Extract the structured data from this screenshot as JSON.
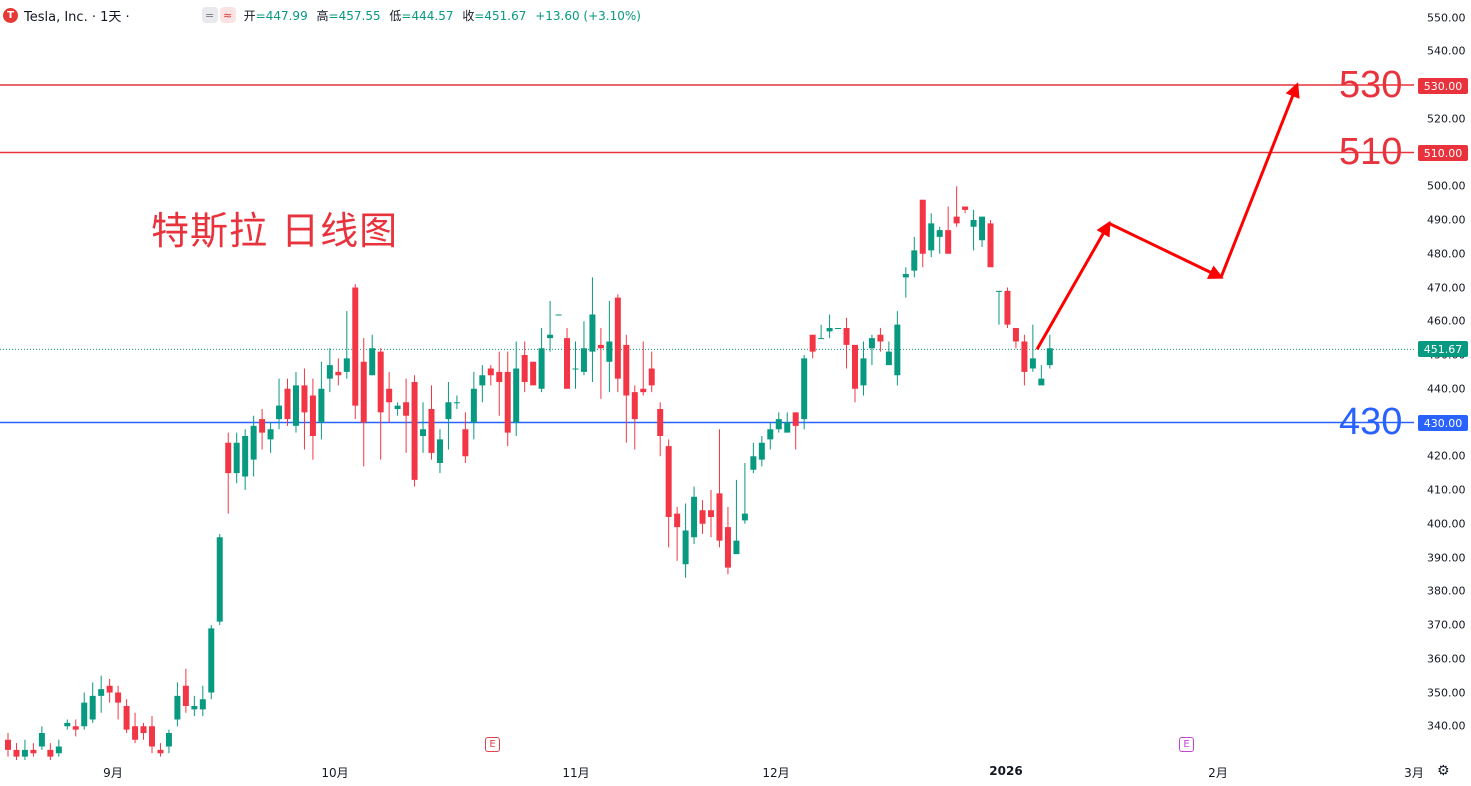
{
  "header": {
    "logo_letter": "T",
    "symbol": "Tesla, Inc. · 1天 ·",
    "pill_1": "=",
    "pill_2": "≈",
    "open_label": "开",
    "open_value": "=447.99",
    "high_label": "高",
    "high_value": "=457.55",
    "low_label": "低",
    "low_value": "=444.57",
    "close_label": "收",
    "close_value": "=451.67",
    "change_value": "+13.60 (+3.10%)"
  },
  "annotation": "特斯拉 日线图",
  "levels": {
    "l530": "530",
    "l510": "510",
    "l430": "430"
  },
  "badges": {
    "b530": "530.00",
    "b510": "510.00",
    "b430": "430.00",
    "last": "451.67"
  },
  "x_axis_labels": {
    "sep": "9月",
    "oct": "10月",
    "nov": "11月",
    "dec": "12月",
    "y2026": "2026",
    "feb": "2月",
    "mar": "3月"
  },
  "events": {
    "e1": "E",
    "e2": "E"
  },
  "settings_icon": "gear-icon",
  "colors": {
    "up": "#089981",
    "down": "#f23645",
    "level_red": "#e8333d",
    "level_blue": "#2962ff",
    "arrow": "#ff0000"
  },
  "chart_data": {
    "type": "candlestick",
    "title": "特斯拉 日线图",
    "symbol": "Tesla, Inc.",
    "interval": "1天",
    "ylim": [
      330,
      555
    ],
    "y_ticks": [
      340,
      350,
      360,
      370,
      380,
      390,
      400,
      410,
      420,
      430,
      440,
      450,
      460,
      470,
      480,
      490,
      500,
      510,
      520,
      530,
      540,
      550
    ],
    "x_labels": [
      "9月",
      "10月",
      "11月",
      "12月",
      "2026",
      "2月",
      "3月"
    ],
    "last_price": 451.67,
    "horizontal_levels": [
      {
        "value": 530,
        "color": "#e8333d"
      },
      {
        "value": 510,
        "color": "#e8333d"
      },
      {
        "value": 430,
        "color": "#2962ff"
      }
    ],
    "candles": [
      [
        336,
        333,
        338,
        331
      ],
      [
        333,
        331,
        335,
        330
      ],
      [
        331,
        333,
        336,
        330
      ],
      [
        333,
        332,
        335,
        331
      ],
      [
        334,
        338,
        340,
        333
      ],
      [
        333,
        331,
        335,
        330
      ],
      [
        332,
        334,
        336,
        331
      ],
      [
        340,
        341,
        342,
        339
      ],
      [
        340,
        339,
        342,
        337
      ],
      [
        340,
        347,
        350,
        339
      ],
      [
        342,
        349,
        353,
        341
      ],
      [
        349,
        351,
        355,
        344
      ],
      [
        352,
        350,
        354,
        347
      ],
      [
        350,
        347,
        352,
        342
      ],
      [
        346,
        339,
        348,
        338
      ],
      [
        340,
        336,
        344,
        335
      ],
      [
        340,
        338,
        341,
        336
      ],
      [
        340,
        334,
        343,
        332
      ],
      [
        333,
        332,
        335,
        331
      ],
      [
        334,
        338,
        339,
        332
      ],
      [
        342,
        349,
        353,
        340
      ],
      [
        352,
        346,
        357,
        344
      ],
      [
        345,
        346,
        349,
        343
      ],
      [
        345,
        348,
        352,
        343
      ],
      [
        350,
        369,
        370,
        348
      ],
      [
        371,
        396,
        397,
        370
      ],
      [
        424,
        415,
        427,
        403
      ],
      [
        415,
        424,
        427,
        412
      ],
      [
        414,
        426,
        428,
        410
      ],
      [
        419,
        429,
        432,
        414
      ],
      [
        431,
        427,
        434,
        422
      ],
      [
        425,
        428,
        430,
        421
      ],
      [
        431,
        435,
        443,
        428
      ],
      [
        440,
        431,
        443,
        429
      ],
      [
        429,
        441,
        445,
        427
      ],
      [
        441,
        433,
        446,
        422
      ],
      [
        438,
        426,
        443,
        419
      ],
      [
        430,
        440,
        448,
        425
      ],
      [
        443,
        447,
        452,
        439
      ],
      [
        445,
        444,
        449,
        441
      ],
      [
        445,
        449,
        463,
        443
      ],
      [
        470,
        435,
        471,
        431
      ],
      [
        448,
        430,
        455,
        417
      ],
      [
        444,
        452,
        456,
        444
      ],
      [
        451,
        433,
        452,
        419
      ],
      [
        440,
        436,
        445,
        430
      ],
      [
        434,
        435,
        436,
        432
      ],
      [
        436,
        432,
        443,
        421
      ],
      [
        442,
        413,
        444,
        411
      ],
      [
        426,
        428,
        436,
        421
      ],
      [
        434,
        421,
        441,
        419
      ],
      [
        418,
        425,
        428,
        415
      ],
      [
        431,
        436,
        442,
        422
      ],
      [
        436,
        436,
        438,
        434
      ],
      [
        428,
        420,
        433,
        418
      ],
      [
        430,
        440,
        445,
        425
      ],
      [
        441,
        444,
        447,
        436
      ],
      [
        446,
        444,
        447,
        441
      ],
      [
        445,
        442,
        451,
        432
      ],
      [
        445,
        427,
        451,
        423
      ],
      [
        430,
        446,
        454,
        426
      ],
      [
        450,
        442,
        454,
        439
      ],
      [
        448,
        441,
        448,
        442
      ],
      [
        440,
        452,
        458,
        439
      ],
      [
        455,
        456,
        466,
        451
      ],
      [
        462,
        462,
        462,
        462
      ],
      [
        455,
        440,
        458,
        440
      ],
      [
        446,
        446,
        454,
        440
      ],
      [
        445,
        452,
        460,
        444
      ],
      [
        451,
        462,
        473,
        442
      ],
      [
        453,
        452,
        458,
        437
      ],
      [
        448,
        454,
        466,
        439
      ],
      [
        467,
        443,
        468,
        439
      ],
      [
        453,
        438,
        456,
        424
      ],
      [
        439,
        431,
        441,
        422
      ],
      [
        440,
        439,
        454,
        438
      ],
      [
        446,
        441,
        451,
        439
      ],
      [
        434,
        426,
        436,
        420
      ],
      [
        423,
        402,
        425,
        393
      ],
      [
        403,
        399,
        405,
        389
      ],
      [
        388,
        398,
        406,
        384
      ],
      [
        396,
        408,
        411,
        394
      ],
      [
        404,
        400,
        407,
        397
      ],
      [
        404,
        402,
        410,
        396
      ],
      [
        409,
        395,
        428,
        393
      ],
      [
        399,
        387,
        405,
        385
      ],
      [
        391,
        395,
        413,
        391
      ],
      [
        401,
        403,
        418,
        400
      ],
      [
        416,
        420,
        424,
        415
      ],
      [
        419,
        424,
        426,
        417
      ],
      [
        425,
        428,
        430,
        422
      ],
      [
        428,
        431,
        433,
        427
      ],
      [
        427,
        430,
        433,
        428
      ],
      [
        433,
        429,
        433,
        422
      ],
      [
        431,
        449,
        450,
        428
      ],
      [
        456,
        451,
        456,
        449
      ],
      [
        455,
        455,
        459,
        455
      ],
      [
        457,
        458,
        462,
        455
      ],
      [
        458,
        458,
        458,
        458
      ],
      [
        458,
        453,
        461,
        446
      ],
      [
        453,
        440,
        445,
        436
      ],
      [
        441,
        449,
        454,
        438
      ],
      [
        452,
        455,
        456,
        447
      ],
      [
        456,
        454,
        458,
        451
      ],
      [
        447,
        451,
        454,
        448
      ],
      [
        444,
        459,
        463,
        441
      ],
      [
        473,
        474,
        476,
        467
      ],
      [
        475,
        481,
        485,
        473
      ],
      [
        496,
        480,
        496,
        476
      ],
      [
        481,
        489,
        492,
        479
      ],
      [
        485,
        487,
        488,
        480
      ],
      [
        487,
        480,
        494,
        481
      ],
      [
        491,
        489,
        500,
        488
      ],
      [
        494,
        493,
        494,
        492
      ],
      [
        488,
        490,
        493,
        481
      ],
      [
        484,
        491,
        490,
        482
      ],
      [
        489,
        476,
        490,
        476
      ],
      [
        469,
        469,
        469,
        459
      ],
      [
        469,
        459,
        470,
        458
      ],
      [
        458,
        454,
        458,
        452
      ],
      [
        454,
        445,
        456,
        441
      ],
      [
        446,
        449,
        459,
        445
      ],
      [
        441,
        443,
        447,
        443
      ],
      [
        447,
        452,
        456,
        446
      ]
    ],
    "projection_path": [
      {
        "x": "2026",
        "y": 451.67
      },
      {
        "x": "2026-01-中",
        "y": 489
      },
      {
        "x": "2026-02-初",
        "y": 473
      },
      {
        "x": "2026-02-下",
        "y": 530
      }
    ]
  }
}
